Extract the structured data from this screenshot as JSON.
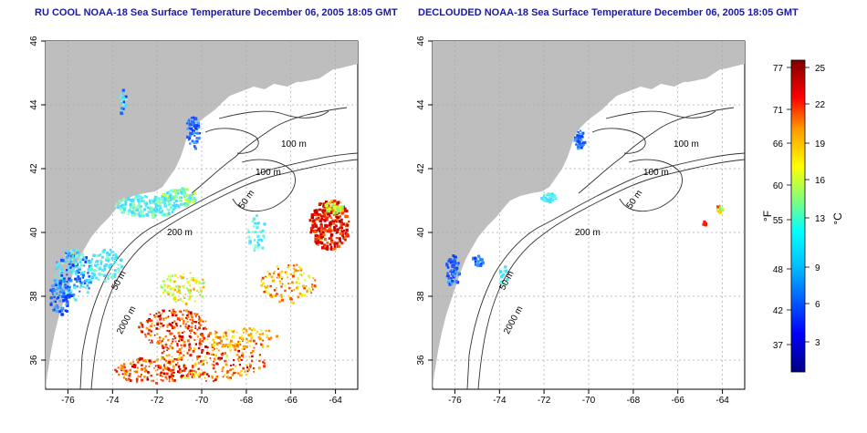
{
  "maps": [
    {
      "title": "RU COOL NOAA-18 Sea Surface Temperature December 06, 2005 18:05 GMT",
      "contours": [
        "100 m",
        "100 m",
        "50 m",
        "200 m",
        "50 m",
        "2000 m"
      ]
    },
    {
      "title": "DECLOUDED NOAA-18 Sea Surface Temperature December 06, 2005 18:05 GMT",
      "contours": [
        "100 m",
        "100 m",
        "50 m",
        "200 m",
        "50 m",
        "2000 m"
      ]
    }
  ],
  "axes": {
    "longitude_ticks": [
      "-76",
      "-74",
      "-72",
      "-70",
      "-68",
      "-66",
      "-64"
    ],
    "latitude_ticks": [
      "46",
      "44",
      "42",
      "40",
      "38",
      "36"
    ],
    "lon_range": [
      -77,
      -63
    ],
    "lat_range": [
      35,
      46
    ]
  },
  "colorbar": {
    "fahrenheit_ticks": [
      "77",
      "71",
      "66",
      "60",
      "55",
      "48",
      "42",
      "37"
    ],
    "celsius_ticks": [
      "25",
      "22",
      "19",
      "16",
      "13",
      "9",
      "6",
      "3"
    ],
    "fahrenheit_label": "°F",
    "celsius_label": "°C",
    "colors": [
      "#00007f",
      "#0000ff",
      "#007fff",
      "#00ffff",
      "#7fff7f",
      "#ffff00",
      "#ff7f00",
      "#ff0000",
      "#7f0000"
    ]
  },
  "colors": {
    "land": "#bebebe",
    "grid": "#a8a8a8",
    "title": "#1a1aa0"
  }
}
